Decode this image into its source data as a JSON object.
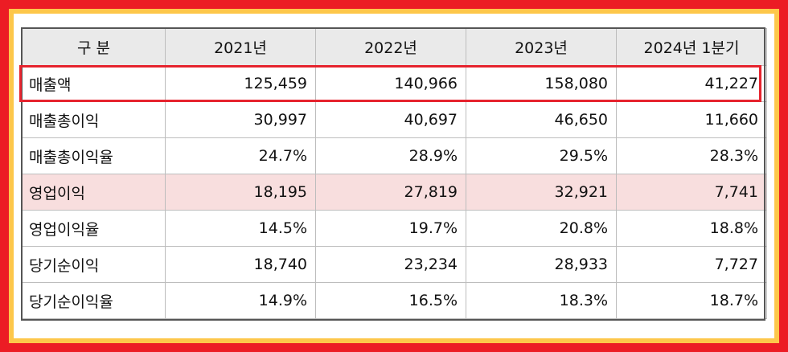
{
  "table": {
    "headers": [
      "구 분",
      "2021년",
      "2022년",
      "2023년",
      "2024년 1분기"
    ],
    "rows": [
      {
        "label": "매출액",
        "values": [
          "125,459",
          "140,966",
          "158,080",
          "41,227"
        ]
      },
      {
        "label": "매출총이익",
        "values": [
          "30,997",
          "40,697",
          "46,650",
          "11,660"
        ]
      },
      {
        "label": "매출총이익율",
        "values": [
          "24.7%",
          "28.9%",
          "29.5%",
          "28.3%"
        ]
      },
      {
        "label": "영업이익",
        "values": [
          "18,195",
          "27,819",
          "32,921",
          "7,741"
        ]
      },
      {
        "label": "영업이익율",
        "values": [
          "14.5%",
          "19.7%",
          "20.8%",
          "18.8%"
        ]
      },
      {
        "label": "당기순이익",
        "values": [
          "18,740",
          "23,234",
          "28,933",
          "7,727"
        ]
      },
      {
        "label": "당기순이익율",
        "values": [
          "14.9%",
          "16.5%",
          "18.3%",
          "18.7%"
        ]
      }
    ]
  },
  "colors": {
    "outer_border": "#ec1c24",
    "inner_border": "#fdc74a",
    "highlight_box": "#e6232e",
    "highlight_row": "#f8dede",
    "header_bg": "#eaeaea"
  }
}
